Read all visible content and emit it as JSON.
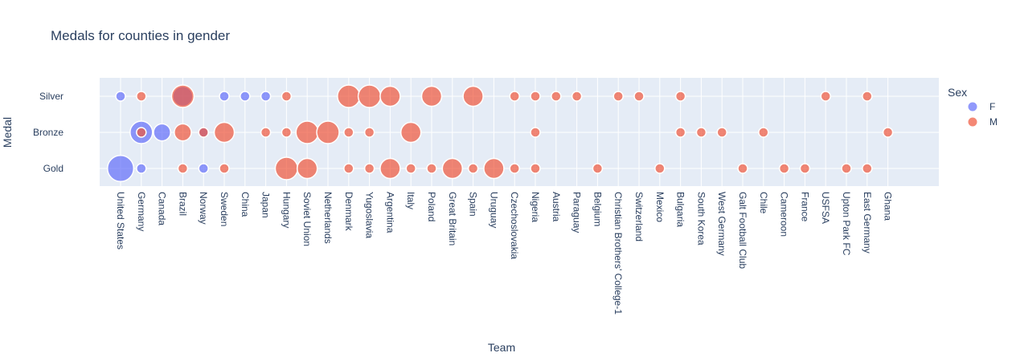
{
  "chart_data": {
    "type": "scatter",
    "title": "Medals for counties in gender",
    "xlabel": "Team",
    "ylabel": "Medal",
    "grid": true,
    "legend_position": "right",
    "legend_title": "Sex",
    "x_categories": [
      "United States",
      "Germany",
      "Canada",
      "Brazil",
      "Norway",
      "Sweden",
      "China",
      "Japan",
      "Hungary",
      "Soviet Union",
      "Netherlands",
      "Denmark",
      "Yugoslavia",
      "Argentina",
      "Italy",
      "Poland",
      "Great Britain",
      "Spain",
      "Uruguay",
      "Czechoslovakia",
      "Nigeria",
      "Austria",
      "Paraguay",
      "Belgium",
      "Christian Brothers' College-1",
      "Switzerland",
      "Mexico",
      "Bulgaria",
      "South Korea",
      "West Germany",
      "Galt Football Club",
      "Chile",
      "Cameroon",
      "France",
      "USFSA",
      "Upton Park FC",
      "East Germany",
      "Ghana"
    ],
    "y_categories": [
      "Gold",
      "Bronze",
      "Silver"
    ],
    "series": [
      {
        "name": "F",
        "color": "#636efa",
        "points": [
          {
            "x": "United States",
            "y": "Silver",
            "size": 1
          },
          {
            "x": "United States",
            "y": "Gold",
            "size": 6
          },
          {
            "x": "Germany",
            "y": "Bronze",
            "size": 4
          },
          {
            "x": "Germany",
            "y": "Gold",
            "size": 1
          },
          {
            "x": "Canada",
            "y": "Bronze",
            "size": 2
          },
          {
            "x": "Brazil",
            "y": "Silver",
            "size": 3
          },
          {
            "x": "Norway",
            "y": "Bronze",
            "size": 1
          },
          {
            "x": "Norway",
            "y": "Gold",
            "size": 1
          },
          {
            "x": "Sweden",
            "y": "Silver",
            "size": 1
          },
          {
            "x": "China",
            "y": "Silver",
            "size": 1
          },
          {
            "x": "Japan",
            "y": "Silver",
            "size": 1
          }
        ]
      },
      {
        "name": "M",
        "color": "#ef553b",
        "points": [
          {
            "x": "Germany",
            "y": "Silver",
            "size": 1
          },
          {
            "x": "Germany",
            "y": "Bronze",
            "size": 1
          },
          {
            "x": "Brazil",
            "y": "Silver",
            "size": 4
          },
          {
            "x": "Brazil",
            "y": "Bronze",
            "size": 2
          },
          {
            "x": "Brazil",
            "y": "Gold",
            "size": 1
          },
          {
            "x": "Norway",
            "y": "Bronze",
            "size": 1
          },
          {
            "x": "Sweden",
            "y": "Bronze",
            "size": 3
          },
          {
            "x": "Sweden",
            "y": "Gold",
            "size": 1
          },
          {
            "x": "Japan",
            "y": "Bronze",
            "size": 1
          },
          {
            "x": "Hungary",
            "y": "Silver",
            "size": 1
          },
          {
            "x": "Hungary",
            "y": "Bronze",
            "size": 1
          },
          {
            "x": "Hungary",
            "y": "Gold",
            "size": 4
          },
          {
            "x": "Soviet Union",
            "y": "Bronze",
            "size": 4
          },
          {
            "x": "Soviet Union",
            "y": "Gold",
            "size": 3
          },
          {
            "x": "Netherlands",
            "y": "Bronze",
            "size": 4
          },
          {
            "x": "Denmark",
            "y": "Silver",
            "size": 4
          },
          {
            "x": "Denmark",
            "y": "Bronze",
            "size": 1
          },
          {
            "x": "Denmark",
            "y": "Gold",
            "size": 1
          },
          {
            "x": "Yugoslavia",
            "y": "Silver",
            "size": 4
          },
          {
            "x": "Yugoslavia",
            "y": "Bronze",
            "size": 1
          },
          {
            "x": "Yugoslavia",
            "y": "Gold",
            "size": 1
          },
          {
            "x": "Argentina",
            "y": "Silver",
            "size": 3
          },
          {
            "x": "Argentina",
            "y": "Gold",
            "size": 3
          },
          {
            "x": "Italy",
            "y": "Bronze",
            "size": 3
          },
          {
            "x": "Italy",
            "y": "Gold",
            "size": 1
          },
          {
            "x": "Poland",
            "y": "Silver",
            "size": 3
          },
          {
            "x": "Poland",
            "y": "Gold",
            "size": 1
          },
          {
            "x": "Great Britain",
            "y": "Gold",
            "size": 3
          },
          {
            "x": "Spain",
            "y": "Silver",
            "size": 3
          },
          {
            "x": "Spain",
            "y": "Gold",
            "size": 1
          },
          {
            "x": "Uruguay",
            "y": "Gold",
            "size": 3
          },
          {
            "x": "Czechoslovakia",
            "y": "Silver",
            "size": 1
          },
          {
            "x": "Czechoslovakia",
            "y": "Gold",
            "size": 1
          },
          {
            "x": "Nigeria",
            "y": "Silver",
            "size": 1
          },
          {
            "x": "Nigeria",
            "y": "Bronze",
            "size": 1
          },
          {
            "x": "Nigeria",
            "y": "Gold",
            "size": 1
          },
          {
            "x": "Austria",
            "y": "Silver",
            "size": 1
          },
          {
            "x": "Paraguay",
            "y": "Silver",
            "size": 1
          },
          {
            "x": "Belgium",
            "y": "Gold",
            "size": 1
          },
          {
            "x": "Christian Brothers' College-1",
            "y": "Silver",
            "size": 1
          },
          {
            "x": "Switzerland",
            "y": "Silver",
            "size": 1
          },
          {
            "x": "Mexico",
            "y": "Gold",
            "size": 1
          },
          {
            "x": "Bulgaria",
            "y": "Silver",
            "size": 1
          },
          {
            "x": "Bulgaria",
            "y": "Bronze",
            "size": 1
          },
          {
            "x": "South Korea",
            "y": "Bronze",
            "size": 1
          },
          {
            "x": "West Germany",
            "y": "Bronze",
            "size": 1
          },
          {
            "x": "Galt Football Club",
            "y": "Gold",
            "size": 1
          },
          {
            "x": "Chile",
            "y": "Bronze",
            "size": 1
          },
          {
            "x": "Cameroon",
            "y": "Gold",
            "size": 1
          },
          {
            "x": "France",
            "y": "Gold",
            "size": 1
          },
          {
            "x": "USFSA",
            "y": "Silver",
            "size": 1
          },
          {
            "x": "Upton Park FC",
            "y": "Gold",
            "size": 1
          },
          {
            "x": "East Germany",
            "y": "Silver",
            "size": 1
          },
          {
            "x": "East Germany",
            "y": "Gold",
            "size": 1
          },
          {
            "x": "Ghana",
            "y": "Bronze",
            "size": 1
          }
        ]
      }
    ]
  }
}
